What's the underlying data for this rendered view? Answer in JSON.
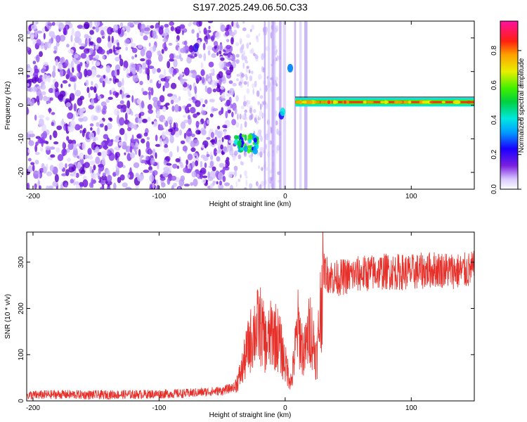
{
  "title": "S197.2025.249.06.50.C33",
  "colors": {
    "snr_line": "#e8302a",
    "spectrogram_low": "#8a2be2",
    "spectrogram_line": "#ff2a1a"
  },
  "chart_data": [
    {
      "type": "heatmap",
      "title": "S197.2025.249.06.50.C33",
      "xlabel": "Height of straight line (km)",
      "ylabel": "Frequency (Hz)",
      "xlim": [
        -205,
        150
      ],
      "ylim": [
        -25,
        25
      ],
      "x_ticks": [
        -200,
        -100,
        0,
        100
      ],
      "y_ticks": [
        -20,
        -10,
        0,
        10,
        20
      ],
      "colorbar": {
        "label": "Normalized spectral amplitude",
        "range": [
          0,
          0.97
        ],
        "ticks": [
          0.0,
          0.2,
          0.4,
          0.6,
          0.8
        ]
      },
      "features": [
        {
          "x_range": [
            -205,
            -40
          ],
          "freq_range": [
            -25,
            25
          ],
          "amplitude": 0.12
        },
        {
          "x_range": [
            -40,
            -22
          ],
          "freq_range": [
            -14,
            -9
          ],
          "amplitude": 0.25
        },
        {
          "x_range": [
            -6,
            2
          ],
          "freq_range": [
            -25,
            25
          ],
          "amplitude": 0.1
        },
        {
          "x_range": [
            8,
            150
          ],
          "freq_range": [
            -0.5,
            2
          ],
          "amplitude": 0.85
        }
      ]
    },
    {
      "type": "line",
      "xlabel": "Height of straight line (km)",
      "ylabel": "SNR (10 * v/v)",
      "xlim": [
        -205,
        150
      ],
      "ylim": [
        0,
        365
      ],
      "x_ticks": [
        -200,
        -100,
        0,
        100
      ],
      "y_ticks": [
        0,
        100,
        200,
        300
      ],
      "series": [
        {
          "x": [
            -205,
            -180,
            -150,
            -120,
            -100,
            -80,
            -60,
            -50,
            -40,
            -35,
            -30,
            -25,
            -20,
            -15,
            -10,
            -5,
            0,
            5,
            10,
            15,
            20,
            25,
            28,
            30,
            35,
            40,
            50,
            60,
            80,
            100,
            120,
            140,
            150
          ],
          "values": [
            12,
            14,
            13,
            14,
            15,
            16,
            20,
            22,
            30,
            60,
            110,
            150,
            165,
            120,
            150,
            130,
            80,
            40,
            160,
            100,
            160,
            90,
            200,
            285,
            270,
            265,
            270,
            275,
            280,
            278,
            285,
            280,
            285
          ]
        }
      ]
    }
  ]
}
